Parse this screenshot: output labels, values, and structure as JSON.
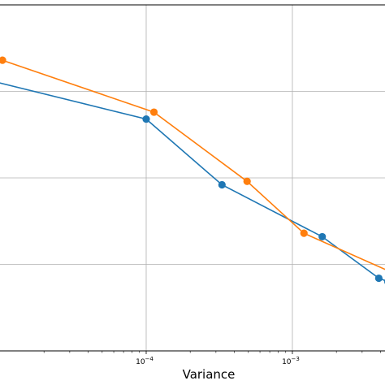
{
  "chart_data": {
    "type": "line",
    "title": "",
    "xlabel": "Variance",
    "ylabel": "",
    "x_scale": "log",
    "xlim": [
      1e-05,
      0.0043
    ],
    "ylim": [
      0,
      1
    ],
    "grid": true,
    "legend": "none",
    "x_ticks": [
      {
        "value": 0.0001,
        "base": "10",
        "exp": "−4"
      },
      {
        "value": 0.001,
        "base": "10",
        "exp": "−3"
      }
    ],
    "series": [
      {
        "color": "#1f77b4",
        "x": [
          8.8e-06,
          0.0001,
          0.00033,
          0.0016,
          0.0039,
          0.0045
        ],
        "y": [
          0.78,
          0.67,
          0.48,
          0.33,
          0.21,
          0.2
        ]
      },
      {
        "color": "#ff7f0e",
        "x": [
          1.04e-05,
          0.000113,
          0.00049,
          0.0012,
          0.0046
        ],
        "y": [
          0.84,
          0.69,
          0.49,
          0.34,
          0.23
        ]
      }
    ]
  }
}
